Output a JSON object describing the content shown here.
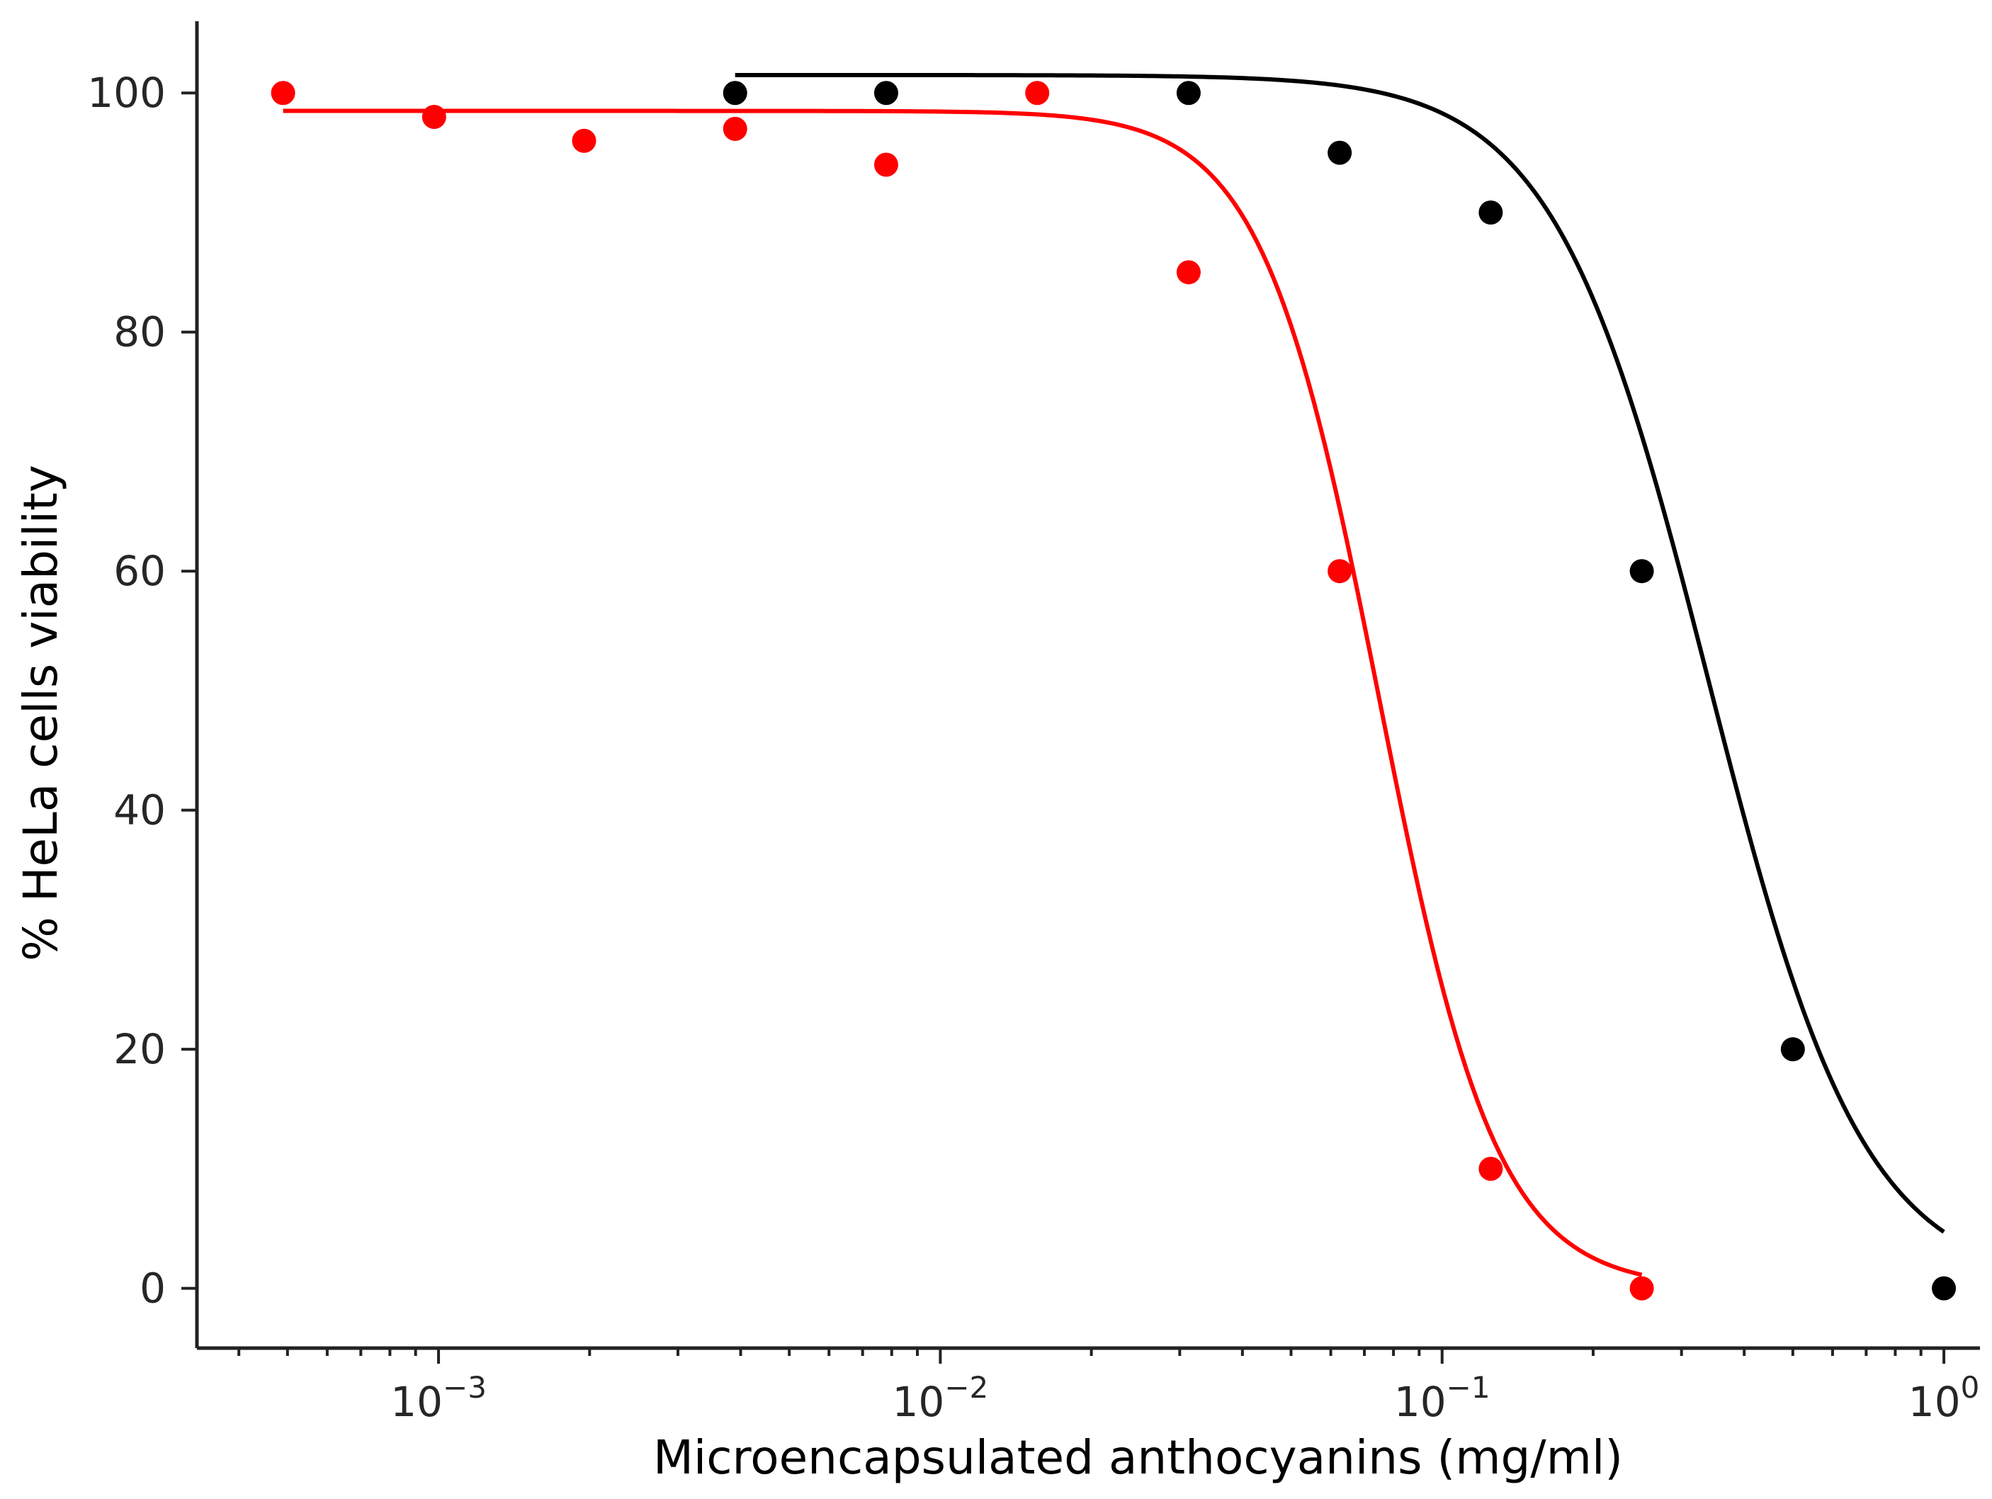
{
  "chart_data": {
    "type": "scatter",
    "title": "",
    "xlabel": "Microencapsulated anthocyanins (mg/ml)",
    "ylabel": "% HeLa cells viability",
    "xscale": "log",
    "xlim": [
      0.00033,
      1.18
    ],
    "ylim": [
      -5,
      106
    ],
    "grid": false,
    "legend": "none",
    "x_ticks": [
      {
        "value": 0.001,
        "base": "10",
        "exp": "−3"
      },
      {
        "value": 0.01,
        "base": "10",
        "exp": "−2"
      },
      {
        "value": 0.1,
        "base": "10",
        "exp": "−1"
      },
      {
        "value": 1,
        "base": "10",
        "exp": "0"
      }
    ],
    "y_ticks": [
      0,
      20,
      40,
      60,
      80,
      100
    ],
    "series": [
      {
        "name": "red",
        "color": "#ff0000",
        "x": [
          0.00049,
          0.00098,
          0.00195,
          0.0039,
          0.0078,
          0.0156,
          0.03125,
          0.0625,
          0.125,
          0.25
        ],
        "y": [
          100,
          98,
          96,
          97,
          94,
          100,
          85,
          60,
          10,
          0
        ],
        "fit": {
          "top": 98.5,
          "bottom": 0,
          "ic50": 0.075,
          "hill": 3.7,
          "x_from": 0.00049,
          "x_to": 0.25
        }
      },
      {
        "name": "black",
        "color": "#000000",
        "x": [
          0.0039,
          0.0078,
          0.03125,
          0.0625,
          0.125,
          0.25,
          0.5,
          1.0
        ],
        "y": [
          100,
          100,
          100,
          95,
          90,
          60,
          20,
          0
        ],
        "fit": {
          "top": 101.5,
          "bottom": 0,
          "ic50": 0.34,
          "hill": 2.8,
          "x_from": 0.0039,
          "x_to": 1.0
        }
      }
    ]
  }
}
